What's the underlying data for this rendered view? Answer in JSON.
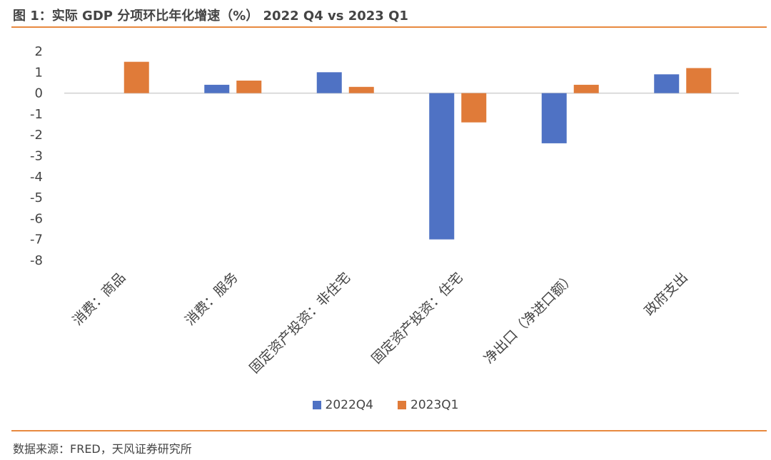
{
  "header": {
    "title": "图 1：实际 GDP 分项环比年化增速（%） 2022 Q4 vs 2023 Q1"
  },
  "footer": {
    "source": "数据来源：FRED，天风证券研究所"
  },
  "colors": {
    "accent_rule": "#e8893f",
    "series_2022Q4": "#4f72c4",
    "series_2023Q1": "#e07b39"
  },
  "chart_data": {
    "type": "bar",
    "title": "图 1：实际 GDP 分项环比年化增速（%） 2022 Q4 vs 2023 Q1",
    "categories": [
      "消费：商品",
      "消费：服务",
      "固定资产投资：非住宅",
      "固定资产投资：住宅",
      "净出口（净进口额）",
      "政府支出"
    ],
    "series": [
      {
        "name": "2022Q4",
        "color": "#4f72c4",
        "values": [
          0.0,
          0.4,
          1.0,
          -7.0,
          -2.4,
          0.9
        ]
      },
      {
        "name": "2023Q1",
        "color": "#e07b39",
        "values": [
          1.5,
          0.6,
          0.3,
          -1.4,
          0.4,
          1.2
        ]
      }
    ],
    "ylim": [
      -8,
      2
    ],
    "yticks": [
      2,
      1,
      0,
      -1,
      -2,
      -3,
      -4,
      -5,
      -6,
      -7,
      -8
    ],
    "xlabel": "",
    "ylabel": "",
    "grid": false,
    "legend": "bottom"
  }
}
